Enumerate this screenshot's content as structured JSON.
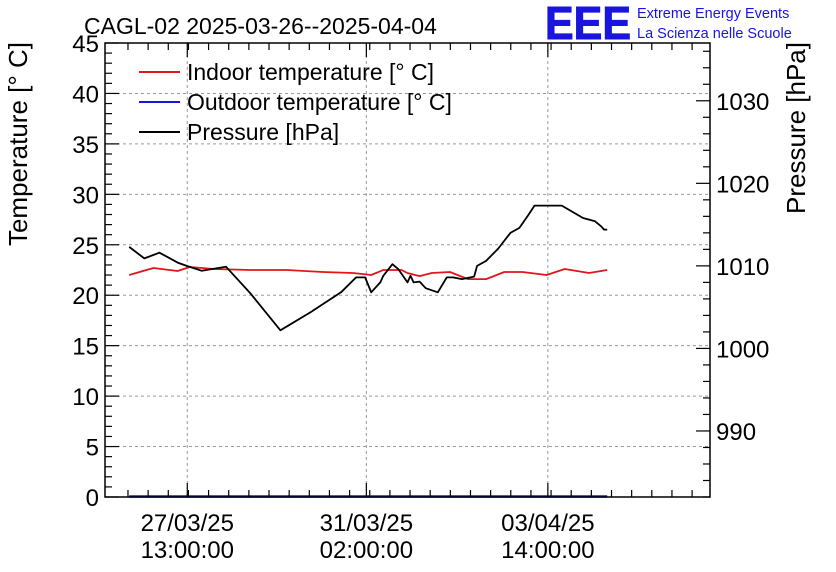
{
  "chart_data": {
    "type": "line",
    "title": "CAGL-02 2025-03-26--2025-04-04",
    "logo": {
      "mark": "EEE",
      "line1": "Extreme Energy Events",
      "line2": "La Scienza nelle Scuole"
    },
    "y_left": {
      "label": "Temperature [° C]",
      "range": [
        0,
        45
      ],
      "ticks": [
        0,
        5,
        10,
        15,
        20,
        25,
        30,
        35,
        40,
        45
      ]
    },
    "y_right": {
      "label": "Pressure [hPa]",
      "range": [
        982,
        1037
      ],
      "ticks": [
        990,
        1000,
        1010,
        1020,
        1030
      ],
      "tick_labels": [
        "990",
        "1000",
        "1010",
        "1020",
        "1030"
      ]
    },
    "x": {
      "range": [
        0,
        10
      ],
      "ticks": [
        {
          "pos": 1.36,
          "date": "27/03/25",
          "time": "13:00:00"
        },
        {
          "pos": 4.32,
          "date": "31/03/25",
          "time": "02:00:00"
        },
        {
          "pos": 7.32,
          "date": "03/04/25",
          "time": "14:00:00"
        }
      ]
    },
    "grid": true,
    "legend": [
      {
        "name": "Indoor temperature [° C]",
        "color": "#e0161c"
      },
      {
        "name": "Outdoor temperature [° C]",
        "color": "#1a14e0"
      },
      {
        "name": "Pressure [hPa]",
        "color": "#000000"
      }
    ],
    "series": [
      {
        "name": "Indoor temperature [° C]",
        "axis": "left",
        "color": "#e0161c",
        "x": [
          0.4,
          0.8,
          1.2,
          1.4,
          1.8,
          2.4,
          3.0,
          3.6,
          4.1,
          4.4,
          4.6,
          4.9,
          5.0,
          5.2,
          5.4,
          5.7,
          6.0,
          6.3,
          6.6,
          6.9,
          7.3,
          7.6,
          8.0,
          8.3
        ],
        "values": [
          22.0,
          22.7,
          22.4,
          22.8,
          22.6,
          22.5,
          22.5,
          22.3,
          22.2,
          22.0,
          22.5,
          22.5,
          22.2,
          21.9,
          22.2,
          22.3,
          21.6,
          21.6,
          22.3,
          22.3,
          22.0,
          22.6,
          22.2,
          22.5
        ]
      },
      {
        "name": "Outdoor temperature [° C]",
        "axis": "left",
        "color": "#1a14e0",
        "x": [
          0.4,
          8.3
        ],
        "values": [
          0.05,
          0.05
        ]
      },
      {
        "name": "Pressure [hPa]",
        "axis": "right",
        "color": "#000000",
        "x": [
          0.4,
          0.65,
          0.9,
          1.05,
          1.2,
          1.35,
          1.6,
          2.0,
          2.4,
          2.9,
          3.4,
          3.9,
          4.15,
          4.3,
          4.4,
          4.55,
          4.6,
          4.75,
          4.85,
          5.0,
          5.05,
          5.1,
          5.2,
          5.3,
          5.5,
          5.65,
          5.75,
          5.9,
          6.1,
          6.15,
          6.3,
          6.5,
          6.7,
          6.85,
          7.0,
          7.1,
          7.3,
          7.55,
          7.9,
          8.1,
          8.2,
          8.25,
          8.3
        ],
        "values": [
          1012.3,
          1010.9,
          1011.6,
          1011.0,
          1010.4,
          1010.0,
          1009.4,
          1009.9,
          1006.7,
          1002.2,
          1004.4,
          1006.8,
          1008.6,
          1008.6,
          1006.8,
          1008.0,
          1008.8,
          1010.2,
          1009.6,
          1008.0,
          1008.8,
          1008.0,
          1008.1,
          1007.3,
          1006.8,
          1008.6,
          1008.6,
          1008.4,
          1008.7,
          1010.0,
          1010.6,
          1012.1,
          1014.0,
          1014.6,
          1016.2,
          1017.3,
          1017.3,
          1017.3,
          1015.8,
          1015.4,
          1014.8,
          1014.4,
          1014.4
        ]
      }
    ]
  }
}
